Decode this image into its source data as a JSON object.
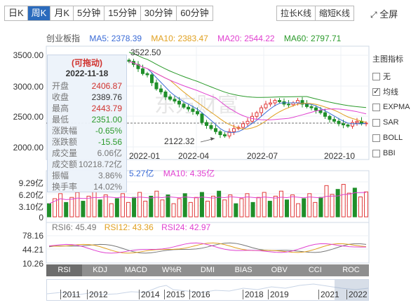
{
  "period_tabs": [
    {
      "label": "日K",
      "active": false
    },
    {
      "label": "周K",
      "active": true
    },
    {
      "label": "月K",
      "active": false
    },
    {
      "label": "5分钟",
      "active": false
    },
    {
      "label": "15分钟",
      "active": false
    },
    {
      "label": "30分钟",
      "active": false
    },
    {
      "label": "60分钟",
      "active": false
    }
  ],
  "controls": {
    "stretch": "拉长K线",
    "shrink": "缩短K线",
    "fullscreen": "全屏"
  },
  "ma_legend": {
    "index_name": "创业板指",
    "ma5": "MA5: 2378.39",
    "ma10": "MA10: 2383.47",
    "ma20": "MA20: 2544.22",
    "ma60": "MA60: 2797.71",
    "colors": {
      "ma5": "#3a6bd6",
      "ma10": "#e0a020",
      "ma20": "#e040d0",
      "ma60": "#2a9a2a"
    }
  },
  "price_axis": [
    "3500.00",
    "3000.00",
    "2500.00",
    "2000.00"
  ],
  "x_axis": [
    "2022-01",
    "2022-04",
    "2022-07",
    "2022-10"
  ],
  "annotations": {
    "high": "3522.50",
    "low": "2122.32"
  },
  "tooltip": {
    "title": "(可拖动)",
    "date": "2022-11-18",
    "rows": [
      {
        "k": "开盘",
        "v": "2406.87",
        "color": "#d0312d"
      },
      {
        "k": "收盘",
        "v": "2389.76",
        "color": "#333333"
      },
      {
        "k": "最高",
        "v": "2443.79",
        "color": "#d0312d"
      },
      {
        "k": "最低",
        "v": "2351.00",
        "color": "#2a9a2a"
      },
      {
        "k": "涨跌幅",
        "v": "-0.65%",
        "color": "#2a9a2a"
      },
      {
        "k": "涨跌额",
        "v": "-15.56",
        "color": "#2a9a2a"
      },
      {
        "k": "成交量",
        "v": "6.06亿",
        "color": "#777777"
      },
      {
        "k": "成交额",
        "v": "10218.72亿",
        "color": "#777777"
      },
      {
        "k": "振幅",
        "v": "3.86%",
        "color": "#777777"
      },
      {
        "k": "换手率",
        "v": "14.02%",
        "color": "#777777"
      }
    ]
  },
  "volume": {
    "ma5_label": "5.27亿",
    "ma10_label": "MA10: 4.35亿",
    "axis": [
      "9.29亿",
      "6.20亿",
      "3.10亿",
      "0"
    ]
  },
  "rsi": {
    "rsi6": "RSI6: 45.49",
    "rsi12": "RSI12: 43.36",
    "rsi24": "RSI24: 42.97",
    "axis": [
      "78.16",
      "44.21",
      "10.26"
    ]
  },
  "indicator_tabs": [
    {
      "label": "RSI",
      "active": true
    },
    {
      "label": "KDJ",
      "active": false
    },
    {
      "label": "MACD",
      "active": false
    },
    {
      "label": "W%R",
      "active": false
    },
    {
      "label": "DMI",
      "active": false
    },
    {
      "label": "BIAS",
      "active": false
    },
    {
      "label": "OBV",
      "active": false
    },
    {
      "label": "CCI",
      "active": false
    },
    {
      "label": "ROC",
      "active": false
    }
  ],
  "side_panel": {
    "title": "主图指标",
    "items": [
      {
        "label": "无",
        "checked": false
      },
      {
        "label": "均线",
        "checked": true
      },
      {
        "label": "EXPMA",
        "checked": false
      },
      {
        "label": "SAR",
        "checked": false
      },
      {
        "label": "BOLL",
        "checked": false
      },
      {
        "label": "BBI",
        "checked": false
      }
    ]
  },
  "timeline_years": [
    "2011",
    "2012",
    "2014",
    "2015",
    "2016",
    "2018",
    "2019",
    "2021",
    "2022"
  ]
}
